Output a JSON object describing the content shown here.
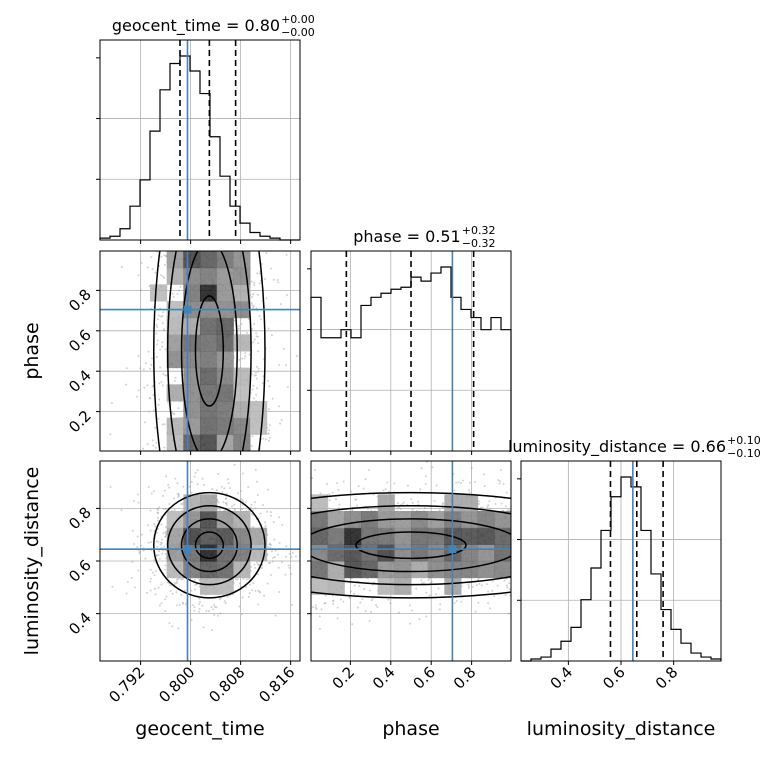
{
  "chart_data": {
    "type": "corner",
    "parameters": [
      {
        "name": "geocent_time",
        "axis_label": "geocent_time",
        "title": {
          "text": "geocent_time = 0.80",
          "upper": "+0.00",
          "lower": "−0.00"
        },
        "range": [
          0.7855,
          0.8175
        ],
        "ticks": [
          0.792,
          0.8,
          0.808,
          0.816
        ],
        "tick_labels": [
          "0.792",
          "0.800",
          "0.808",
          "0.816"
        ],
        "truth": 0.7995,
        "quantiles": [
          0.7983,
          0.803,
          0.8072
        ],
        "histogram": {
          "edges_start": 0.7855,
          "bin_width": 0.0016,
          "counts": [
            1,
            2,
            6,
            18,
            32,
            58,
            80,
            94,
            98,
            90,
            78,
            55,
            34,
            18,
            9,
            4,
            2,
            1,
            0,
            0
          ]
        }
      },
      {
        "name": "phase",
        "axis_label": "phase",
        "title": {
          "text": "phase = 0.51",
          "upper": "+0.32",
          "lower": "−0.32"
        },
        "range": [
          0.005,
          0.995
        ],
        "ticks": [
          0.2,
          0.4,
          0.6,
          0.8
        ],
        "tick_labels": [
          "0.2",
          "0.4",
          "0.6",
          "0.8"
        ],
        "truth": 0.705,
        "quantiles": [
          0.18,
          0.5,
          0.81
        ],
        "histogram": {
          "edges_start": 0.005,
          "bin_width": 0.0495,
          "counts": [
            76,
            56,
            56,
            60,
            56,
            72,
            76,
            78,
            80,
            81,
            86,
            84,
            88,
            91,
            76,
            70,
            66,
            60,
            66,
            60
          ]
        }
      },
      {
        "name": "luminosity_distance",
        "axis_label": "luminosity_distance",
        "title": {
          "text": "luminosity_distance = 0.66",
          "upper": "+0.10",
          "lower": "−0.10"
        },
        "range": [
          0.22,
          0.98
        ],
        "ticks": [
          0.4,
          0.6,
          0.8
        ],
        "tick_labels": [
          "0.4",
          "0.6",
          "0.8"
        ],
        "truth": 0.645,
        "quantiles": [
          0.56,
          0.66,
          0.76
        ],
        "histogram": {
          "edges_start": 0.22,
          "bin_width": 0.038,
          "counts": [
            0,
            1,
            2,
            6,
            10,
            17,
            31,
            47,
            66,
            83,
            93,
            88,
            66,
            44,
            26,
            16,
            9,
            4,
            2,
            1
          ]
        }
      }
    ],
    "truth_color": "#4682b4",
    "grid": true
  }
}
